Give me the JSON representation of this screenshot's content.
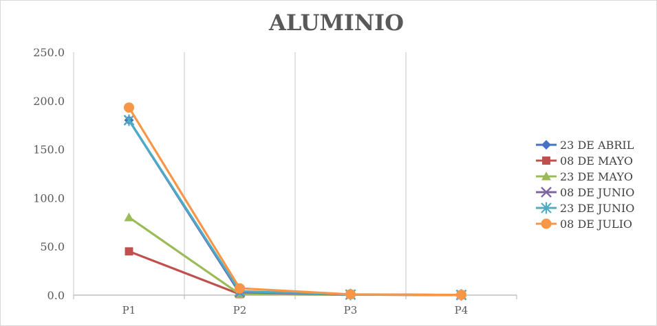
{
  "chart_data": {
    "type": "line",
    "title": "ALUMINIO",
    "xlabel": "",
    "ylabel": "",
    "categories": [
      "P1",
      "P2",
      "P3",
      "P4"
    ],
    "ylim": [
      0,
      250
    ],
    "yticks": [
      "0.0",
      "50.0",
      "100.0",
      "150.0",
      "200.0",
      "250.0"
    ],
    "grid": "vertical",
    "legend_position": "right",
    "series": [
      {
        "name": "23 DE ABRIL",
        "color": "#4472C4",
        "marker": "diamond",
        "values": [
          180,
          2,
          0.5,
          0.2
        ]
      },
      {
        "name": "08 DE MAYO",
        "color": "#C0504D",
        "marker": "square",
        "values": [
          45,
          1,
          0.5,
          0.2
        ]
      },
      {
        "name": "23 DE MAYO",
        "color": "#9BBB59",
        "marker": "triangle",
        "values": [
          80,
          1,
          0.5,
          0.2
        ]
      },
      {
        "name": "08 DE JUNIO",
        "color": "#8064A2",
        "marker": "x",
        "values": [
          180,
          3,
          0.5,
          0.2
        ]
      },
      {
        "name": "23 DE JUNIO",
        "color": "#4BACC6",
        "marker": "star",
        "values": [
          180,
          4,
          0.6,
          0.2
        ]
      },
      {
        "name": "08 DE JULIO",
        "color": "#F79646",
        "marker": "circle",
        "values": [
          193,
          7,
          0.8,
          0.3
        ]
      }
    ]
  }
}
